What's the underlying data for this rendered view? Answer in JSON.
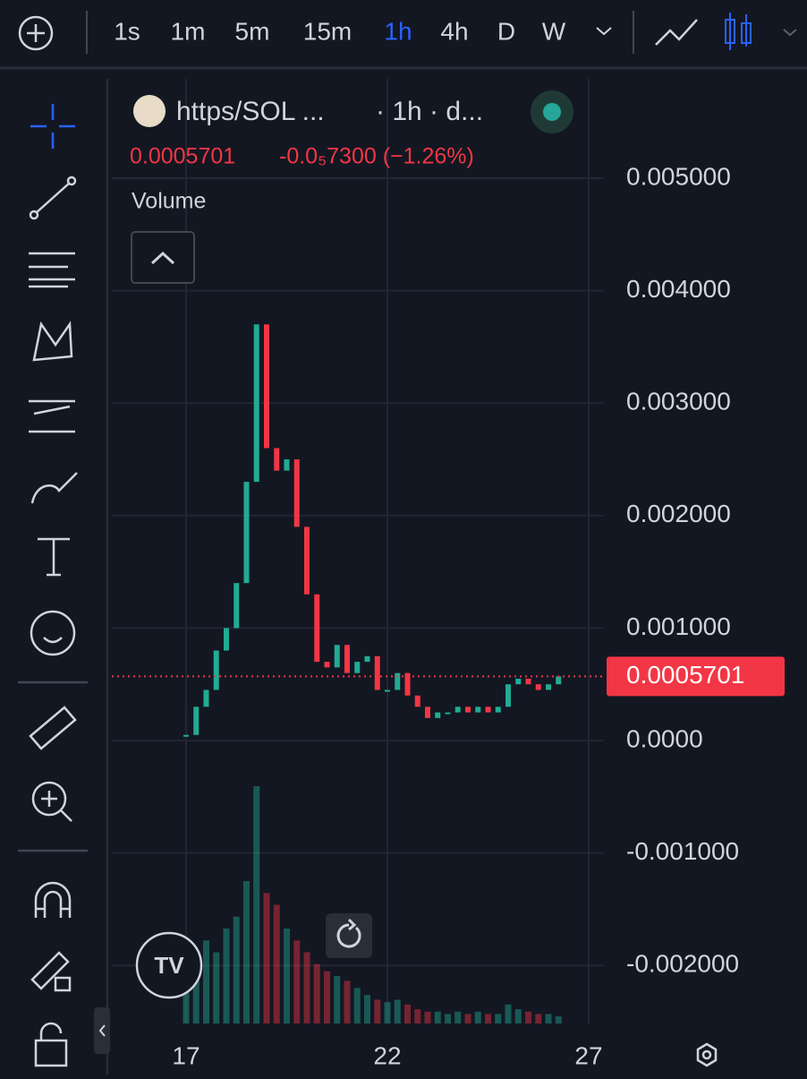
{
  "toolbar": {
    "intervals": [
      "1s",
      "1m",
      "5m",
      "15m",
      "1h",
      "4h",
      "D",
      "W"
    ],
    "active": "1h"
  },
  "header": {
    "symbol": "https/SOL ...",
    "meta": "· 1h · d...",
    "price": "0.0005701",
    "change": "-0.0₅7300 (−1.26%)",
    "volume_label": "Volume"
  },
  "chart": {
    "type": "candlestick",
    "up_color": "#22ab94",
    "down_color": "#f23645",
    "ylim": [
      -0.002516,
      0.005884
    ],
    "yticks": [
      {
        "value": 0.005,
        "label": "0.005000"
      },
      {
        "value": 0.004,
        "label": "0.004000"
      },
      {
        "value": 0.003,
        "label": "0.003000"
      },
      {
        "value": 0.002,
        "label": "0.002000"
      },
      {
        "value": 0.001,
        "label": "0.001000"
      },
      {
        "value": 0,
        "label": "0.0000"
      },
      {
        "value": -0.001,
        "label": "-0.001000"
      },
      {
        "value": -0.002,
        "label": "-0.002000"
      }
    ],
    "xlim": [
      15.156,
      27.378
    ],
    "xticks": [
      17,
      22,
      27
    ],
    "last_price": {
      "value": 0.0005701,
      "label": "0.0005701"
    },
    "x": [
      17,
      17.25,
      17.5,
      17.75,
      18,
      18.25,
      18.5,
      18.75,
      19,
      19.25,
      19.5,
      19.75,
      20,
      20.25,
      20.5,
      20.75,
      21,
      21.25,
      21.5,
      21.75,
      22,
      22.25,
      22.5,
      22.75,
      23,
      23.25,
      23.5,
      23.75,
      24,
      24.25,
      24.5,
      24.75,
      25,
      25.25,
      25.5,
      25.75,
      26,
      26.25
    ],
    "close": [
      5e-05,
      0.0003,
      0.00045,
      0.0008,
      0.001,
      0.0014,
      0.0023,
      0.0037,
      0.0026,
      0.0024,
      0.0025,
      0.0019,
      0.0013,
      0.0007,
      0.00065,
      0.00085,
      0.0006,
      0.0007,
      0.00075,
      0.00045,
      0.00045,
      0.0006,
      0.0004,
      0.0003,
      0.0002,
      0.00025,
      0.00025,
      0.0003,
      0.00025,
      0.0003,
      0.00025,
      0.0003,
      0.0005,
      0.00055,
      0.0005,
      0.00045,
      0.0005,
      0.00057
    ],
    "volume": [
      20,
      25,
      35,
      30,
      40,
      45,
      60,
      100,
      55,
      50,
      40,
      35,
      30,
      25,
      22,
      20,
      18,
      15,
      12,
      10,
      9,
      10,
      8,
      6,
      5,
      5,
      4,
      5,
      4,
      5,
      4,
      4,
      8,
      6,
      5,
      4,
      4,
      3
    ]
  }
}
